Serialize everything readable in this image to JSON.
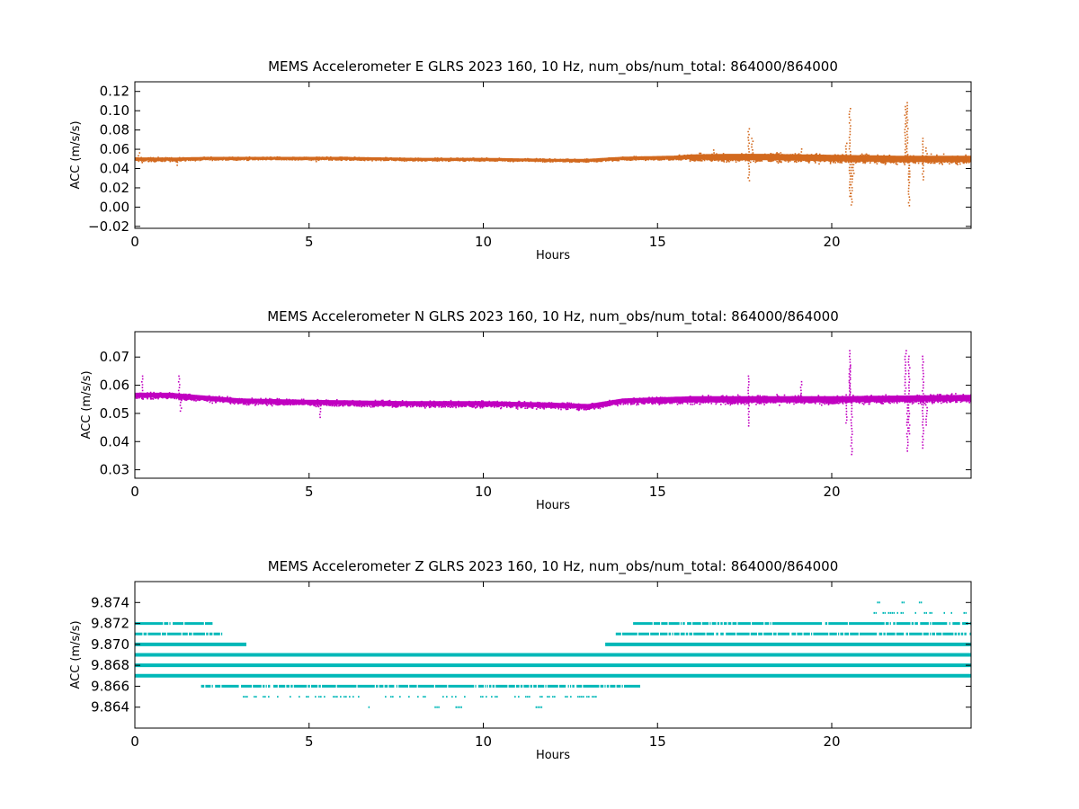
{
  "chart_data": [
    {
      "type": "scatter",
      "title": "MEMS Accelerometer E GLRS 2023 160, 10 Hz, num_obs/num_total: 864000/864000",
      "xlabel": "Hours",
      "ylabel": "ACC (m/s/s)",
      "xlim": [
        0,
        24
      ],
      "ylim": [
        -0.022,
        0.13
      ],
      "xticks": [
        0,
        5,
        10,
        15,
        20
      ],
      "xtick_labels": [
        "0",
        "5",
        "10",
        "15",
        "20"
      ],
      "yticks": [
        -0.02,
        0.0,
        0.02,
        0.04,
        0.06,
        0.08,
        0.1,
        0.12
      ],
      "ytick_labels": [
        "−0.02",
        "0.00",
        "0.02",
        "0.04",
        "0.06",
        "0.08",
        "0.10",
        "0.12"
      ],
      "color": "#d2691e",
      "grid": false,
      "series": [
        {
          "values": {
            "band_center": [
              [
                0,
                0.05
              ],
              [
                1,
                0.05
              ],
              [
                2,
                0.051
              ],
              [
                4,
                0.051
              ],
              [
                6,
                0.051
              ],
              [
                8,
                0.05
              ],
              [
                10,
                0.05
              ],
              [
                12,
                0.049
              ],
              [
                13,
                0.049
              ],
              [
                14,
                0.051
              ],
              [
                16,
                0.052
              ],
              [
                18,
                0.052
              ],
              [
                20,
                0.051
              ],
              [
                22,
                0.05
              ],
              [
                24,
                0.05
              ]
            ],
            "band_halfwidth": [
              [
                0,
                0.003
              ],
              [
                2,
                0.002
              ],
              [
                13,
                0.002
              ],
              [
                15.5,
                0.003
              ],
              [
                16,
                0.005
              ],
              [
                17,
                0.006
              ],
              [
                20,
                0.006
              ],
              [
                24,
                0.006
              ]
            ],
            "outliers": [
              [
                0.1,
                0.057
              ],
              [
                0.2,
                0.045
              ],
              [
                1.2,
                0.042
              ],
              [
                5.2,
                0.047
              ],
              [
                16.6,
                0.06
              ],
              [
                17.6,
                0.082
              ],
              [
                17.6,
                0.026
              ],
              [
                17.7,
                0.072
              ],
              [
                19.1,
                0.061
              ],
              [
                20.4,
                0.067
              ],
              [
                20.5,
                0.103
              ],
              [
                20.55,
                0.0
              ],
              [
                20.5,
                0.01
              ],
              [
                20.6,
                0.032
              ],
              [
                22.1,
                0.105
              ],
              [
                22.15,
                0.109
              ],
              [
                22.2,
                0.001
              ],
              [
                22.2,
                0.025
              ],
              [
                22.6,
                0.072
              ],
              [
                22.6,
                0.027
              ],
              [
                22.7,
                0.062
              ]
            ]
          }
        }
      ]
    },
    {
      "type": "scatter",
      "title": "MEMS Accelerometer N GLRS 2023 160, 10 Hz, num_obs/num_total: 864000/864000",
      "xlabel": "Hours",
      "ylabel": "ACC (m/s/s)",
      "xlim": [
        0,
        24
      ],
      "ylim": [
        0.027,
        0.079
      ],
      "xticks": [
        0,
        5,
        10,
        15,
        20
      ],
      "xtick_labels": [
        "0",
        "5",
        "10",
        "15",
        "20"
      ],
      "yticks": [
        0.03,
        0.04,
        0.05,
        0.06,
        0.07
      ],
      "ytick_labels": [
        "0.03",
        "0.04",
        "0.05",
        "0.06",
        "0.07"
      ],
      "color": "#c000c0",
      "grid": false,
      "series": [
        {
          "values": {
            "band_center": [
              [
                0,
                0.0565
              ],
              [
                1,
                0.0565
              ],
              [
                2,
                0.0555
              ],
              [
                3,
                0.0545
              ],
              [
                5,
                0.054
              ],
              [
                8,
                0.0535
              ],
              [
                10,
                0.0535
              ],
              [
                12,
                0.053
              ],
              [
                13,
                0.0525
              ],
              [
                14,
                0.0545
              ],
              [
                16,
                0.055
              ],
              [
                20,
                0.055
              ],
              [
                24,
                0.0555
              ]
            ],
            "band_halfwidth": [
              [
                0,
                0.0015
              ],
              [
                13,
                0.0015
              ],
              [
                14,
                0.0015
              ],
              [
                16,
                0.002
              ],
              [
                24,
                0.002
              ]
            ],
            "outliers": [
              [
                0.2,
                0.0635
              ],
              [
                1.25,
                0.0635
              ],
              [
                1.3,
                0.0505
              ],
              [
                5.3,
                0.0485
              ],
              [
                17.6,
                0.0455
              ],
              [
                17.6,
                0.0635
              ],
              [
                19.1,
                0.0615
              ],
              [
                20.5,
                0.0725
              ],
              [
                20.55,
                0.0355
              ],
              [
                20.5,
                0.067
              ],
              [
                20.4,
                0.0465
              ],
              [
                22.1,
                0.0725
              ],
              [
                22.15,
                0.0365
              ],
              [
                22.2,
                0.0705
              ],
              [
                22.2,
                0.0425
              ],
              [
                22.6,
                0.0705
              ],
              [
                22.6,
                0.0375
              ],
              [
                22.7,
                0.0455
              ]
            ]
          }
        }
      ]
    },
    {
      "type": "scatter",
      "title": "MEMS Accelerometer Z GLRS 2023 160, 10 Hz, num_obs/num_total: 864000/864000",
      "xlabel": "Hours",
      "ylabel": "ACC (m/s/s)",
      "xlim": [
        0,
        24
      ],
      "ylim": [
        9.862,
        9.876
      ],
      "xticks": [
        0,
        5,
        10,
        15,
        20
      ],
      "xtick_labels": [
        "0",
        "5",
        "10",
        "15",
        "20"
      ],
      "yticks": [
        9.864,
        9.866,
        9.868,
        9.87,
        9.872,
        9.874
      ],
      "ytick_labels": [
        "9.864",
        "9.866",
        "9.868",
        "9.870",
        "9.872",
        "9.874"
      ],
      "color": "#00b8b8",
      "grid": false,
      "series": [
        {
          "values": {
            "levels": [
              {
                "y": 9.874,
                "ranges": [
                  [
                    21.3,
                    21.4
                  ],
                  [
                    21.9,
                    22.3
                  ],
                  [
                    22.5,
                    22.6
                  ]
                ],
                "weight": "sparse"
              },
              {
                "y": 9.873,
                "ranges": [
                  [
                    21.2,
                    24
                  ]
                ],
                "weight": "sparse"
              },
              {
                "y": 9.872,
                "ranges": [
                  [
                    0,
                    2.2
                  ],
                  [
                    14.3,
                    24
                  ]
                ],
                "weight": "medium"
              },
              {
                "y": 9.871,
                "ranges": [
                  [
                    0,
                    2.5
                  ],
                  [
                    13.8,
                    24
                  ]
                ],
                "weight": "medium"
              },
              {
                "y": 9.87,
                "ranges": [
                  [
                    0,
                    3.2
                  ],
                  [
                    13.5,
                    24
                  ]
                ],
                "weight": "heavy"
              },
              {
                "y": 9.869,
                "ranges": [
                  [
                    0,
                    24
                  ]
                ],
                "weight": "heavy"
              },
              {
                "y": 9.868,
                "ranges": [
                  [
                    0,
                    24
                  ]
                ],
                "weight": "heavy"
              },
              {
                "y": 9.867,
                "ranges": [
                  [
                    0,
                    24
                  ]
                ],
                "weight": "heavy"
              },
              {
                "y": 9.866,
                "ranges": [
                  [
                    1.9,
                    14.5
                  ]
                ],
                "weight": "medium"
              },
              {
                "y": 9.865,
                "ranges": [
                  [
                    3.1,
                    13.7
                  ]
                ],
                "weight": "sparse"
              },
              {
                "y": 9.864,
                "ranges": [
                  [
                    6.7,
                    6.75
                  ],
                  [
                    8.6,
                    8.75
                  ],
                  [
                    9.2,
                    9.4
                  ],
                  [
                    11.5,
                    11.7
                  ]
                ],
                "weight": "sparse"
              }
            ]
          }
        }
      ]
    }
  ]
}
